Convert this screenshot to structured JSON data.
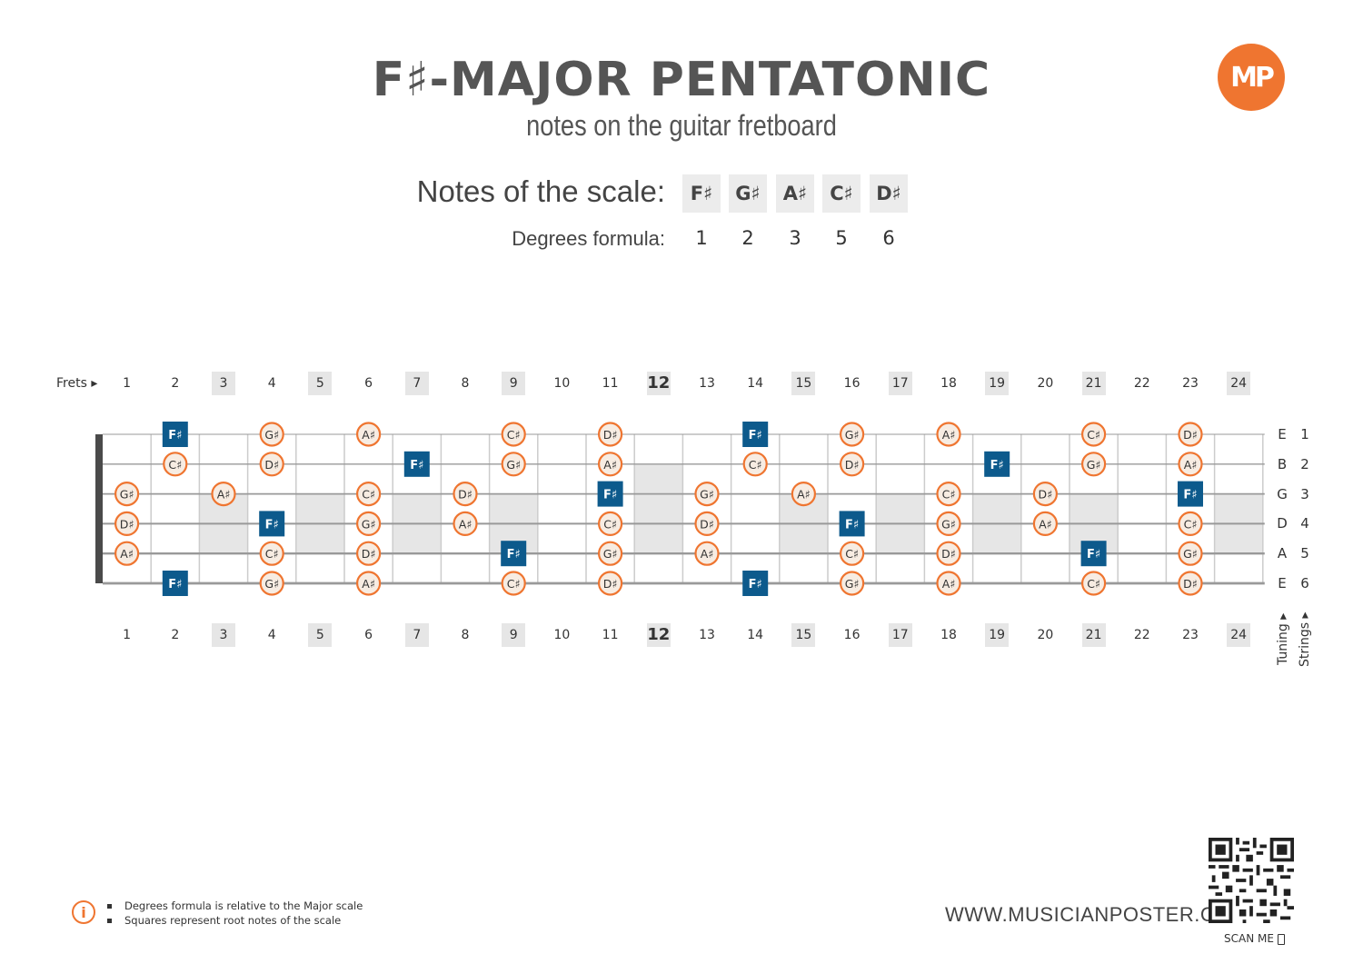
{
  "title": "F♯-MAJOR PENTATONIC",
  "subtitle": "notes on the guitar fretboard",
  "logo_text": "MP",
  "notes_label": "Notes of the scale:",
  "degrees_label": "Degrees formula:",
  "scale_notes": [
    "F♯",
    "G♯",
    "A♯",
    "C♯",
    "D♯"
  ],
  "degrees": [
    "1",
    "2",
    "3",
    "5",
    "6"
  ],
  "frets_label": "Frets ▸",
  "fret_numbers": [
    "1",
    "2",
    "3",
    "4",
    "5",
    "6",
    "7",
    "8",
    "9",
    "10",
    "11",
    "12",
    "13",
    "14",
    "15",
    "16",
    "17",
    "18",
    "19",
    "20",
    "21",
    "22",
    "23",
    "24"
  ],
  "shaded_frets": [
    3,
    5,
    7,
    9,
    12,
    15,
    17,
    19,
    21,
    24
  ],
  "strings": [
    {
      "name": "E",
      "number": "1"
    },
    {
      "name": "B",
      "number": "2"
    },
    {
      "name": "G",
      "number": "3"
    },
    {
      "name": "D",
      "number": "4"
    },
    {
      "name": "A",
      "number": "5"
    },
    {
      "name": "E",
      "number": "6"
    }
  ],
  "tuning_label": "Tuning ▸",
  "strings_label": "Strings ▸",
  "root_note": "F♯",
  "fretboard_notes": [
    {
      "string": 1,
      "notes": [
        [
          2,
          "F♯"
        ],
        [
          4,
          "G♯"
        ],
        [
          6,
          "A♯"
        ],
        [
          9,
          "C♯"
        ],
        [
          11,
          "D♯"
        ],
        [
          14,
          "F♯"
        ],
        [
          16,
          "G♯"
        ],
        [
          18,
          "A♯"
        ],
        [
          21,
          "C♯"
        ],
        [
          23,
          "D♯"
        ]
      ]
    },
    {
      "string": 2,
      "notes": [
        [
          2,
          "C♯"
        ],
        [
          4,
          "D♯"
        ],
        [
          7,
          "F♯"
        ],
        [
          9,
          "G♯"
        ],
        [
          11,
          "A♯"
        ],
        [
          14,
          "C♯"
        ],
        [
          16,
          "D♯"
        ],
        [
          19,
          "F♯"
        ],
        [
          21,
          "G♯"
        ],
        [
          23,
          "A♯"
        ]
      ]
    },
    {
      "string": 3,
      "notes": [
        [
          1,
          "G♯"
        ],
        [
          3,
          "A♯"
        ],
        [
          6,
          "C♯"
        ],
        [
          8,
          "D♯"
        ],
        [
          11,
          "F♯"
        ],
        [
          13,
          "G♯"
        ],
        [
          15,
          "A♯"
        ],
        [
          18,
          "C♯"
        ],
        [
          20,
          "D♯"
        ],
        [
          23,
          "F♯"
        ]
      ]
    },
    {
      "string": 4,
      "notes": [
        [
          1,
          "D♯"
        ],
        [
          4,
          "F♯"
        ],
        [
          6,
          "G♯"
        ],
        [
          8,
          "A♯"
        ],
        [
          11,
          "C♯"
        ],
        [
          13,
          "D♯"
        ],
        [
          16,
          "F♯"
        ],
        [
          18,
          "G♯"
        ],
        [
          20,
          "A♯"
        ],
        [
          23,
          "C♯"
        ]
      ]
    },
    {
      "string": 5,
      "notes": [
        [
          1,
          "A♯"
        ],
        [
          4,
          "C♯"
        ],
        [
          6,
          "D♯"
        ],
        [
          9,
          "F♯"
        ],
        [
          11,
          "G♯"
        ],
        [
          13,
          "A♯"
        ],
        [
          16,
          "C♯"
        ],
        [
          18,
          "D♯"
        ],
        [
          21,
          "F♯"
        ],
        [
          23,
          "G♯"
        ]
      ]
    },
    {
      "string": 6,
      "notes": [
        [
          2,
          "F♯"
        ],
        [
          4,
          "G♯"
        ],
        [
          6,
          "A♯"
        ],
        [
          9,
          "C♯"
        ],
        [
          11,
          "D♯"
        ],
        [
          14,
          "F♯"
        ],
        [
          16,
          "G♯"
        ],
        [
          18,
          "A♯"
        ],
        [
          21,
          "C♯"
        ],
        [
          23,
          "D♯"
        ]
      ]
    }
  ],
  "legend": {
    "items": [
      "Degrees formula is relative to the Major scale",
      "Squares represent root notes of the scale"
    ]
  },
  "website": "WWW.MUSICIANPOSTER.COM",
  "scan_label": "SCAN ME",
  "colors": {
    "accent": "#ef7530",
    "root": "#0d5a8c",
    "circle_fill": "#f7ece2",
    "string": "#999999",
    "nut": "#4a4a4a",
    "shade": "#e6e6e6"
  }
}
